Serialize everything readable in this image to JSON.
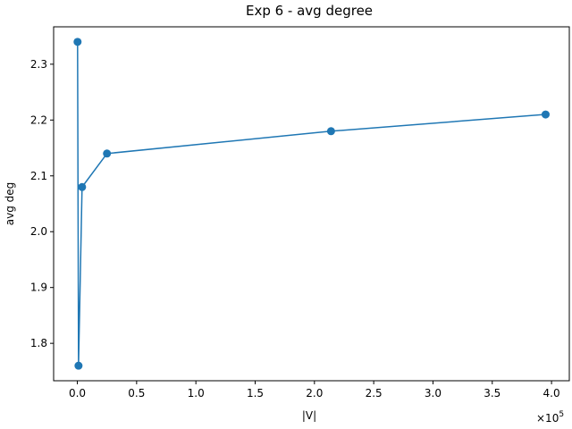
{
  "chart_data": {
    "type": "line",
    "title": "Exp 6 - avg degree",
    "xlabel": "|V|",
    "ylabel": "avg deg",
    "x_offset_label": {
      "base": "×10",
      "exponent": "5"
    },
    "xlim": [
      -20000,
      415000
    ],
    "ylim": [
      1.733,
      2.367
    ],
    "x_ticks": [
      0,
      50000,
      100000,
      150000,
      200000,
      250000,
      300000,
      350000,
      400000
    ],
    "x_tick_labels": [
      "0.0",
      "0.5",
      "1.0",
      "1.5",
      "2.0",
      "2.5",
      "3.0",
      "3.5",
      "4.0"
    ],
    "y_ticks": [
      1.8,
      1.9,
      2.0,
      2.1,
      2.2,
      2.3
    ],
    "y_tick_labels": [
      "1.8",
      "1.9",
      "2.0",
      "2.1",
      "2.2",
      "2.3"
    ],
    "grid": false,
    "legend": false,
    "series": [
      {
        "color": "#1f77b4",
        "marker": "circle",
        "x": [
          200,
          1000,
          4000,
          25000,
          214000,
          395000
        ],
        "y": [
          2.34,
          1.76,
          2.08,
          2.14,
          2.18,
          2.21
        ]
      }
    ]
  }
}
